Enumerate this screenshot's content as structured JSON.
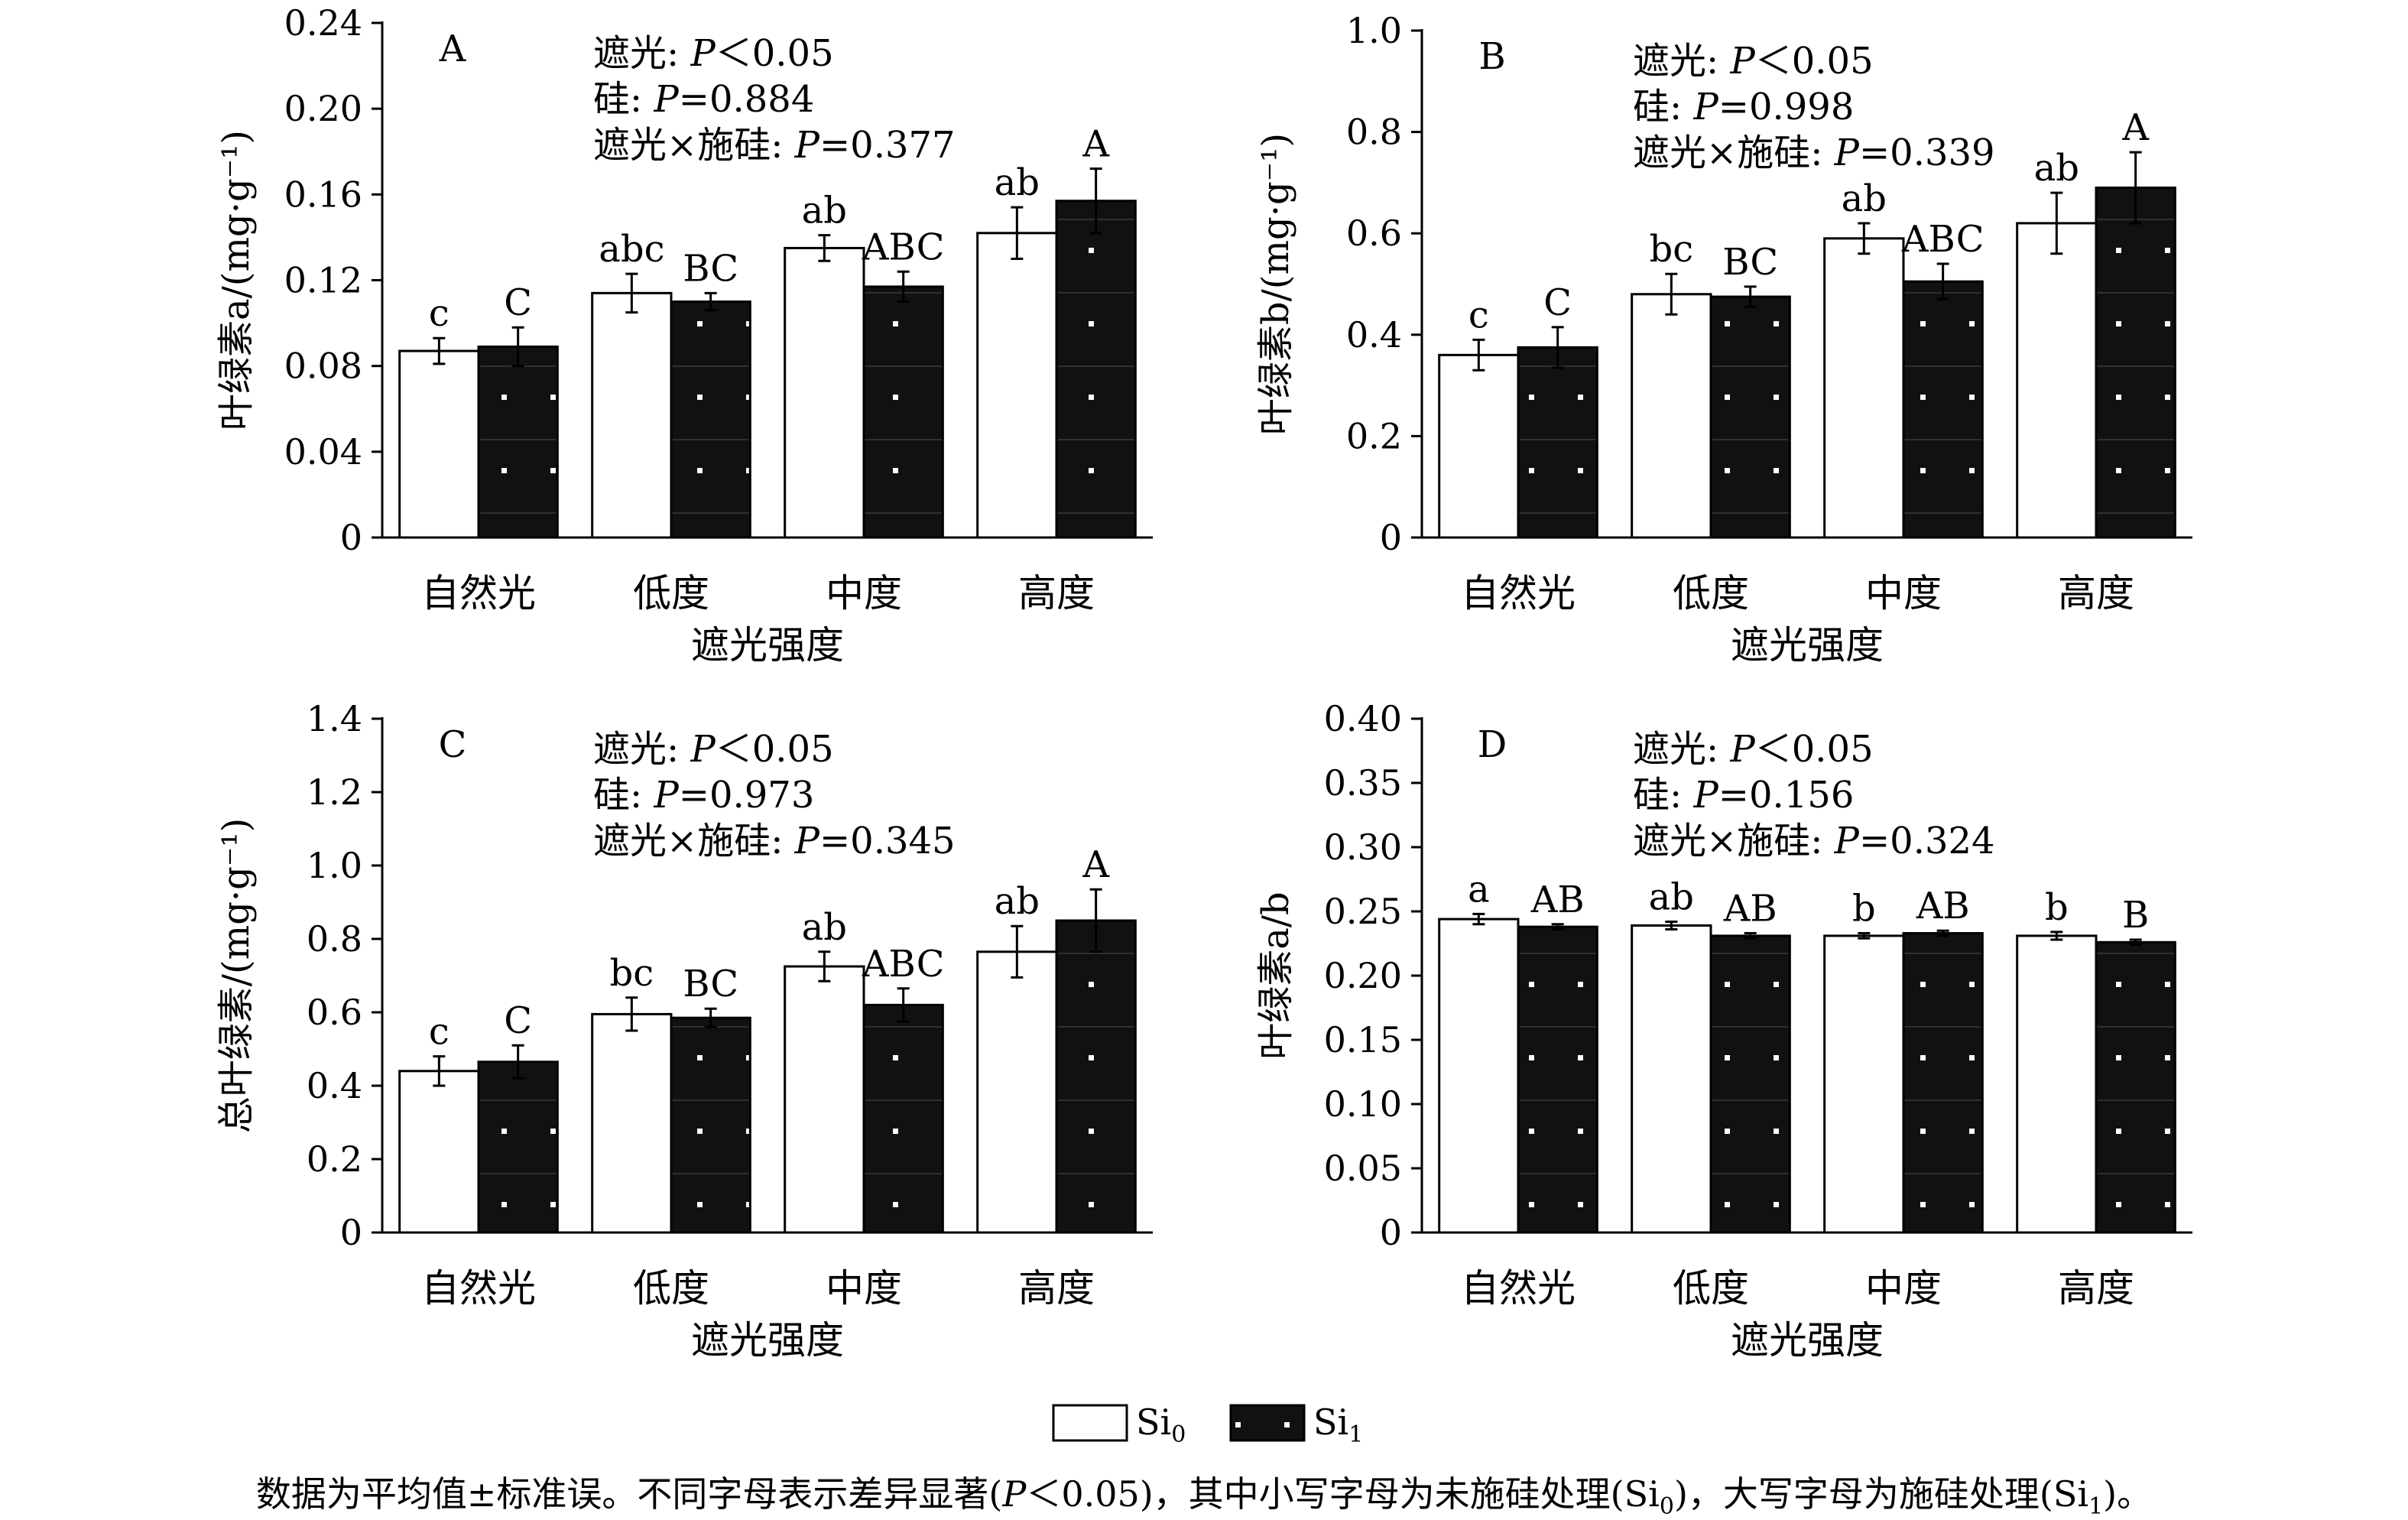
{
  "legend": {
    "items": [
      {
        "label": "Si",
        "sub": "0",
        "fill": "white"
      },
      {
        "label": "Si",
        "sub": "1",
        "fill": "black"
      }
    ]
  },
  "footer": {
    "part1": "数据为平均值±标准误。不同字母表示差异显著(",
    "p_italic": "P",
    "part2": "＜0.05)，其中小写字母为未施硅处理(Si",
    "sub0": "0",
    "part3": ")，大写字母为施硅处理(Si",
    "sub1": "1",
    "part4": ")。"
  },
  "colors": {
    "si0_fill": "#ffffff",
    "si1_fill": "#111111",
    "dot": "#ffffff",
    "axis": "#000000",
    "grid_dark": "#555555"
  },
  "chart_data": [
    {
      "type": "bar",
      "panel_label": "A",
      "categories": [
        "自然光",
        "低度",
        "中度",
        "高度"
      ],
      "xlabel": "遮光强度",
      "ylabel": "叶绿素a/(mg·g⁻¹)",
      "ylim": [
        0,
        0.24
      ],
      "yticks": [
        "0",
        "0.04",
        "0.08",
        "0.12",
        "0.16",
        "0.20",
        "0.24"
      ],
      "series": [
        {
          "name": "Si0",
          "values": [
            0.087,
            0.114,
            0.135,
            0.142
          ],
          "errors": [
            0.006,
            0.009,
            0.006,
            0.012
          ],
          "letters": [
            "c",
            "abc",
            "ab",
            "ab"
          ]
        },
        {
          "name": "Si1",
          "values": [
            0.089,
            0.11,
            0.117,
            0.157
          ],
          "errors": [
            0.009,
            0.004,
            0.007,
            0.015
          ],
          "letters": [
            "C",
            "BC",
            "ABC",
            "A"
          ]
        }
      ],
      "stats": [
        {
          "label": "遮光: ",
          "p": "P",
          "value": "＜0.05"
        },
        {
          "label": "硅: ",
          "p": "P",
          "value": "=0.884"
        },
        {
          "label": "遮光×施硅: ",
          "p": "P",
          "value": "=0.377"
        }
      ]
    },
    {
      "type": "bar",
      "panel_label": "B",
      "categories": [
        "自然光",
        "低度",
        "中度",
        "高度"
      ],
      "xlabel": "遮光强度",
      "ylabel": "叶绿素b/(mg·g⁻¹)",
      "ylim": [
        0,
        1.0
      ],
      "yticks": [
        "0",
        "0.2",
        "0.4",
        "0.6",
        "0.8",
        "1.0"
      ],
      "series": [
        {
          "name": "Si0",
          "values": [
            0.36,
            0.48,
            0.59,
            0.62
          ],
          "errors": [
            0.03,
            0.04,
            0.03,
            0.06
          ],
          "letters": [
            "c",
            "bc",
            "ab",
            "ab"
          ]
        },
        {
          "name": "Si1",
          "values": [
            0.375,
            0.475,
            0.505,
            0.69
          ],
          "errors": [
            0.04,
            0.02,
            0.035,
            0.07
          ],
          "letters": [
            "C",
            "BC",
            "ABC",
            "A"
          ]
        }
      ],
      "stats": [
        {
          "label": "遮光: ",
          "p": "P",
          "value": "＜0.05"
        },
        {
          "label": "硅: ",
          "p": "P",
          "value": "=0.998"
        },
        {
          "label": "遮光×施硅: ",
          "p": "P",
          "value": "=0.339"
        }
      ]
    },
    {
      "type": "bar",
      "panel_label": "C",
      "categories": [
        "自然光",
        "低度",
        "中度",
        "高度"
      ],
      "xlabel": "遮光强度",
      "ylabel": "总叶绿素/(mg·g⁻¹)",
      "ylim": [
        0,
        1.4
      ],
      "yticks": [
        "0",
        "0.2",
        "0.4",
        "0.6",
        "0.8",
        "1.0",
        "1.2",
        "1.4"
      ],
      "series": [
        {
          "name": "Si0",
          "values": [
            0.44,
            0.595,
            0.725,
            0.765
          ],
          "errors": [
            0.04,
            0.045,
            0.04,
            0.07
          ],
          "letters": [
            "c",
            "bc",
            "ab",
            "ab"
          ]
        },
        {
          "name": "Si1",
          "values": [
            0.465,
            0.585,
            0.62,
            0.85
          ],
          "errors": [
            0.045,
            0.025,
            0.045,
            0.085
          ],
          "letters": [
            "C",
            "BC",
            "ABC",
            "A"
          ]
        }
      ],
      "stats": [
        {
          "label": "遮光: ",
          "p": "P",
          "value": "＜0.05"
        },
        {
          "label": "硅: ",
          "p": "P",
          "value": "=0.973"
        },
        {
          "label": "遮光×施硅: ",
          "p": "P",
          "value": "=0.345"
        }
      ]
    },
    {
      "type": "bar",
      "panel_label": "D",
      "categories": [
        "自然光",
        "低度",
        "中度",
        "高度"
      ],
      "xlabel": "遮光强度",
      "ylabel": "叶绿素a/b",
      "ylim": [
        0,
        0.4
      ],
      "yticks": [
        "0",
        "0.05",
        "0.10",
        "0.15",
        "0.20",
        "0.25",
        "0.30",
        "0.35",
        "0.40"
      ],
      "series": [
        {
          "name": "Si0",
          "values": [
            0.244,
            0.239,
            0.231,
            0.231
          ],
          "errors": [
            0.004,
            0.003,
            0.002,
            0.003
          ],
          "letters": [
            "a",
            "ab",
            "b",
            "b"
          ]
        },
        {
          "name": "Si1",
          "values": [
            0.238,
            0.231,
            0.233,
            0.226
          ],
          "errors": [
            0.002,
            0.002,
            0.002,
            0.002
          ],
          "letters": [
            "AB",
            "AB",
            "AB",
            "B"
          ]
        }
      ],
      "stats": [
        {
          "label": "遮光: ",
          "p": "P",
          "value": "＜0.05"
        },
        {
          "label": "硅: ",
          "p": "P",
          "value": "=0.156"
        },
        {
          "label": "遮光×施硅: ",
          "p": "P",
          "value": "=0.324"
        }
      ]
    }
  ]
}
